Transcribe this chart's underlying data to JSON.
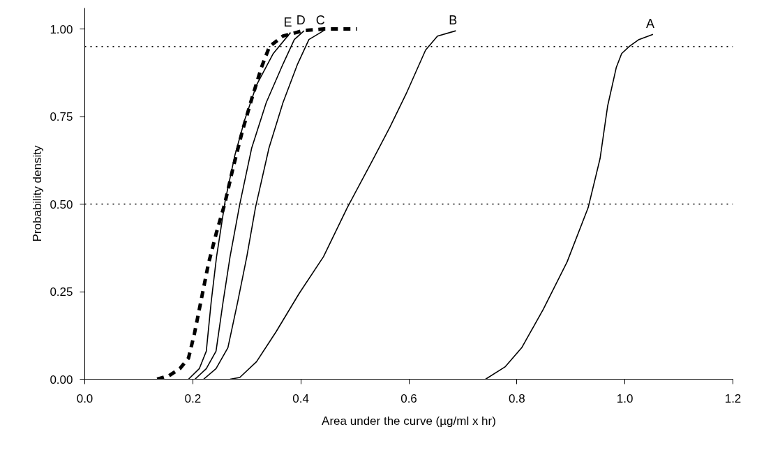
{
  "chart_data": {
    "type": "line",
    "xlabel": "Area under the curve (µg/ml x hr)",
    "ylabel": "Probability density",
    "xlim": [
      0,
      1.2
    ],
    "ylim": [
      0,
      1.06
    ],
    "xticks": [
      {
        "value": 0,
        "label": "0.0"
      },
      {
        "value": 0.2,
        "label": "0.2"
      },
      {
        "value": 0.4,
        "label": "0.4"
      },
      {
        "value": 0.6,
        "label": "0.6"
      },
      {
        "value": 0.8,
        "label": "0.8"
      },
      {
        "value": 1.0,
        "label": "1.0"
      },
      {
        "value": 1.2,
        "label": "1.2"
      }
    ],
    "yticks": [
      {
        "value": 0,
        "label": "0.00"
      },
      {
        "value": 0.25,
        "label": "0.25"
      },
      {
        "value": 0.5,
        "label": "0.50"
      },
      {
        "value": 0.75,
        "label": "0.75"
      },
      {
        "value": 1.0,
        "label": "1.00"
      }
    ],
    "grid": false,
    "legend": false,
    "marker": "none",
    "series": [
      {
        "color": "#000000",
        "line_style": "dashed",
        "x": [
          0.134,
          0.156,
          0.176,
          0.192,
          0.203,
          0.216,
          0.229,
          0.244,
          0.259,
          0.274,
          0.292,
          0.309,
          0.327,
          0.342,
          0.367,
          0.406,
          0.442,
          0.504
        ],
        "values": [
          0.0,
          0.01,
          0.03,
          0.06,
          0.13,
          0.23,
          0.33,
          0.42,
          0.5,
          0.6,
          0.71,
          0.8,
          0.89,
          0.95,
          0.98,
          0.996,
          1.0,
          1.0
        ]
      },
      {
        "name": "E",
        "color": "#000000",
        "line_style": "solid",
        "x": [
          0.192,
          0.212,
          0.225,
          0.234,
          0.244,
          0.26,
          0.278,
          0.296,
          0.318,
          0.349,
          0.381
        ],
        "values": [
          0.0,
          0.03,
          0.08,
          0.22,
          0.35,
          0.51,
          0.64,
          0.74,
          0.84,
          0.93,
          0.99
        ]
      },
      {
        "name": "D",
        "color": "#000000",
        "line_style": "solid",
        "x": [
          0.204,
          0.225,
          0.243,
          0.256,
          0.269,
          0.287,
          0.309,
          0.336,
          0.367,
          0.388,
          0.406
        ],
        "values": [
          0.0,
          0.03,
          0.08,
          0.22,
          0.35,
          0.5,
          0.66,
          0.79,
          0.9,
          0.97,
          0.995
        ]
      },
      {
        "name": "C",
        "color": "#000000",
        "line_style": "solid",
        "x": [
          0.22,
          0.243,
          0.265,
          0.283,
          0.3,
          0.316,
          0.341,
          0.367,
          0.394,
          0.415,
          0.442
        ],
        "values": [
          0.0,
          0.03,
          0.09,
          0.22,
          0.35,
          0.49,
          0.66,
          0.79,
          0.9,
          0.97,
          0.995
        ]
      },
      {
        "name": "B",
        "color": "#000000",
        "line_style": "solid",
        "x": [
          0.269,
          0.287,
          0.318,
          0.354,
          0.397,
          0.442,
          0.486,
          0.531,
          0.565,
          0.595,
          0.631,
          0.653,
          0.687
        ],
        "values": [
          0.0,
          0.005,
          0.05,
          0.135,
          0.245,
          0.35,
          0.49,
          0.62,
          0.72,
          0.815,
          0.94,
          0.98,
          0.995
        ]
      },
      {
        "name": "A",
        "color": "#000000",
        "line_style": "solid",
        "x": [
          0.742,
          0.778,
          0.809,
          0.849,
          0.893,
          0.932,
          0.954,
          0.968,
          0.984,
          0.994,
          1.008,
          1.026,
          1.052
        ],
        "values": [
          0.0,
          0.035,
          0.09,
          0.2,
          0.335,
          0.49,
          0.63,
          0.78,
          0.89,
          0.93,
          0.95,
          0.97,
          0.985
        ]
      }
    ],
    "ref_lines": [
      {
        "axis": "y",
        "value": 0.95,
        "line_style": "dotted",
        "color": "#000000"
      },
      {
        "axis": "y",
        "value": 0.5,
        "line_style": "dotted",
        "color": "#000000"
      }
    ]
  }
}
